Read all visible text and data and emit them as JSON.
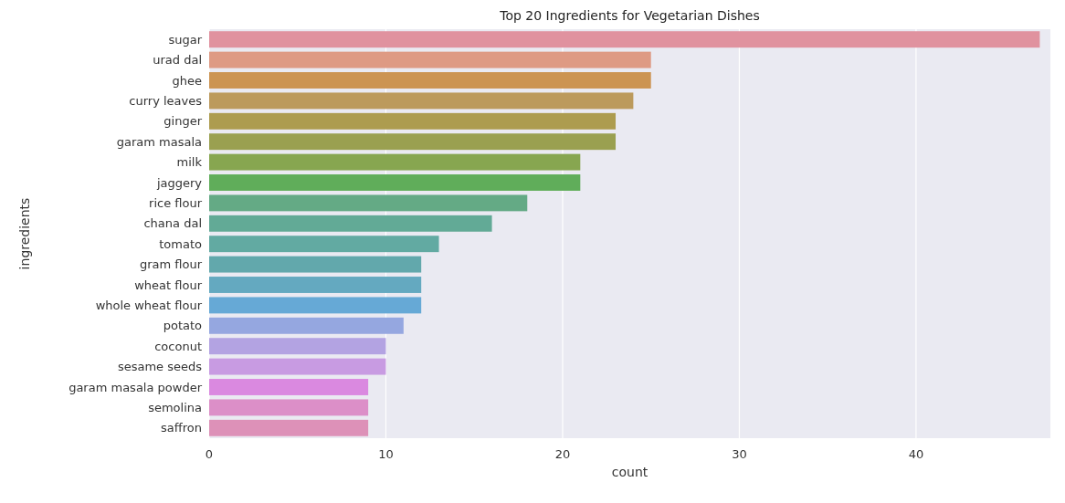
{
  "chart_data": {
    "type": "bar",
    "orientation": "horizontal",
    "title": "Top 20 Ingredients for Vegetarian Dishes",
    "xlabel": "count",
    "ylabel": "ingredients",
    "categories": [
      "sugar",
      "urad dal",
      "ghee",
      "curry leaves",
      "ginger",
      "garam masala",
      "milk",
      "jaggery",
      "rice flour",
      "chana dal",
      "tomato",
      "gram flour",
      "wheat flour",
      "whole wheat flour",
      "potato",
      "coconut",
      "sesame seeds",
      "garam masala powder",
      "semolina",
      "saffron"
    ],
    "values": [
      47,
      25,
      25,
      24,
      23,
      23,
      21,
      21,
      18,
      16,
      13,
      12,
      12,
      12,
      11,
      10,
      10,
      9,
      9,
      9
    ],
    "colors": [
      "#e0929f",
      "#de9a84",
      "#cc9452",
      "#bc9a5c",
      "#ad9c4f",
      "#9aa050",
      "#87a650",
      "#60ad5a",
      "#64aa85",
      "#62aa96",
      "#62aaa2",
      "#62a8ac",
      "#64a9c0",
      "#66a9d6",
      "#95a7e0",
      "#b3a3e2",
      "#c89be2",
      "#da89e0",
      "#dc8fc8",
      "#dd91b8"
    ],
    "xlim": [
      0,
      47.6
    ],
    "xticks": [
      0,
      10,
      20,
      30,
      40
    ],
    "grid": "x"
  }
}
